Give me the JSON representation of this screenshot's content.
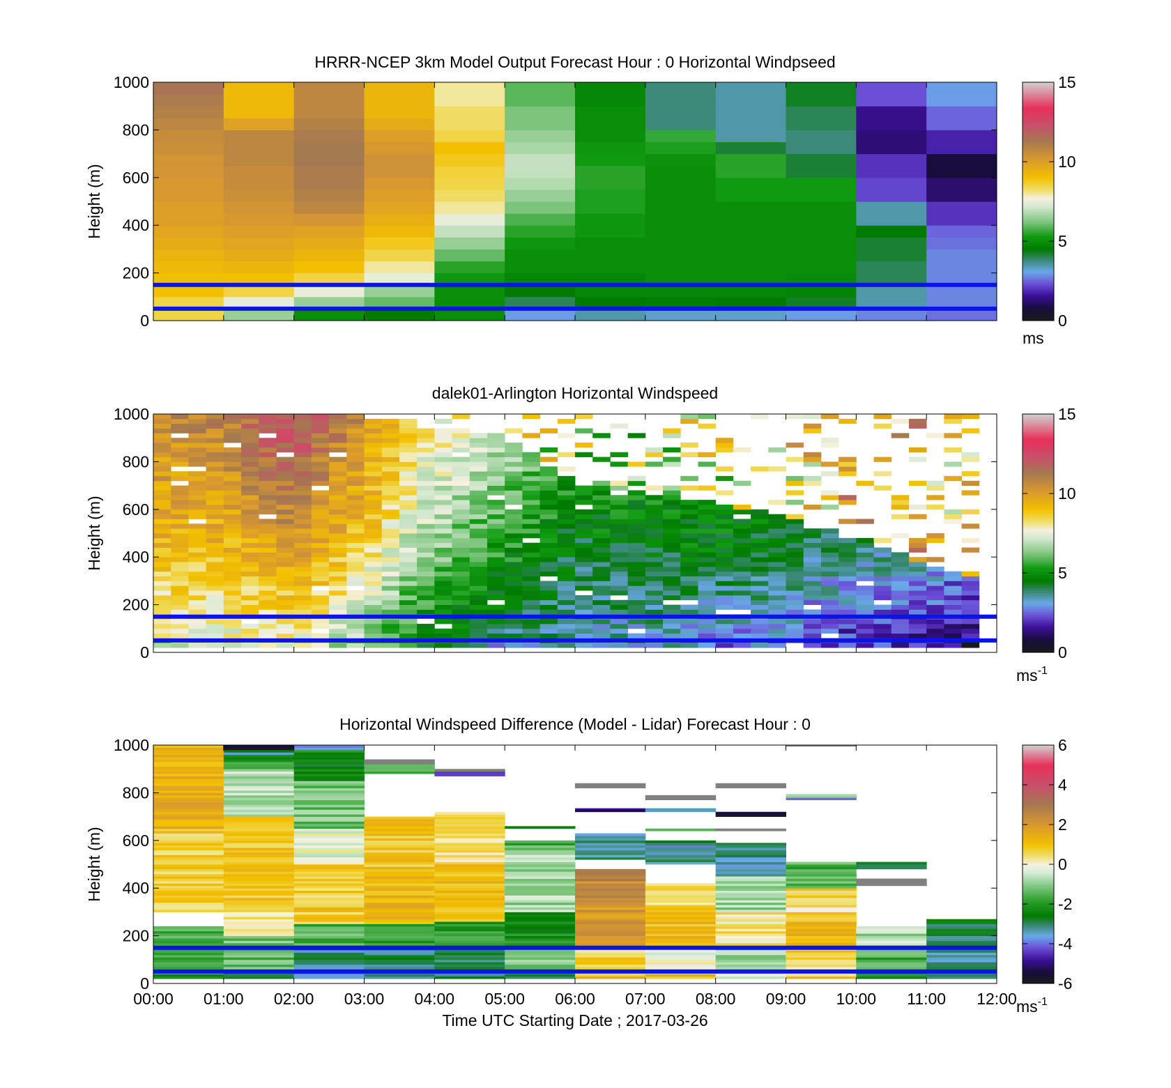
{
  "figure": {
    "xlabel": "Time UTC  Starting Date ; 2017-03-26",
    "x_tick_labels": [
      "00:00",
      "01:00",
      "02:00",
      "03:00",
      "04:00",
      "05:00",
      "06:00",
      "07:00",
      "08:00",
      "09:00",
      "10:00",
      "11:00",
      "12:00"
    ],
    "x_range_hours": [
      0,
      12
    ],
    "reference_lines_m": [
      150,
      50
    ],
    "reference_line_color": "#0a14e6"
  },
  "chart_data": [
    {
      "type": "heatmap",
      "title": "HRRR-NCEP 3km Model Output   Forecast Hour : 0 Horizontal Windpseed",
      "ylabel": "Height (m)",
      "ylim": [
        0,
        1000
      ],
      "y_tick_labels": [
        "0",
        "200",
        "400",
        "600",
        "800",
        "1000"
      ],
      "colorbar": {
        "range": [
          0,
          15
        ],
        "tick_labels": [
          "0",
          "5",
          "10",
          "15"
        ],
        "unit": "ms",
        "colormap": "windspeed"
      },
      "grid": "hourly",
      "heights_m": [
        25,
        75,
        125,
        175,
        225,
        275,
        325,
        375,
        425,
        475,
        525,
        575,
        625,
        675,
        725,
        775,
        825,
        875,
        925,
        975
      ],
      "values_by_hour": [
        [
          8.5,
          8.5,
          9,
          9,
          9.2,
          9.4,
          9.6,
          9.8,
          10,
          10,
          10.2,
          10.2,
          10.3,
          10.3,
          10.5,
          10.6,
          10.8,
          11,
          11.2,
          11.4
        ],
        [
          6.5,
          7.5,
          8.5,
          9,
          9.3,
          9.6,
          9.8,
          10,
          10.2,
          10.3,
          10.5,
          10.6,
          10.6,
          10.8,
          10.8,
          10.8,
          9.9,
          9.2,
          9.2,
          9.2
        ],
        [
          5,
          6.5,
          7.5,
          8.5,
          9,
          9.3,
          9.6,
          9.9,
          10.3,
          10.8,
          11,
          11.2,
          11.2,
          11.3,
          11.3,
          11.2,
          11,
          10.8,
          10.8,
          10.8
        ],
        [
          4.5,
          6,
          6.5,
          7.5,
          8,
          8.5,
          8.8,
          9.2,
          9.5,
          9.8,
          10,
          10.2,
          10.4,
          10.4,
          10.2,
          10,
          9.6,
          9.3,
          9.3,
          9.3
        ],
        [
          5,
          5,
          5,
          5.2,
          5.5,
          6,
          6.5,
          7,
          7.5,
          8,
          8.3,
          8.5,
          8.6,
          8.8,
          9,
          8.5,
          8.3,
          8.3,
          8,
          8
        ],
        [
          3,
          4,
          4.5,
          4.8,
          5,
          5,
          5.2,
          5.5,
          5.8,
          6.2,
          6.5,
          6.8,
          7,
          7,
          6.7,
          6.5,
          6.2,
          6.2,
          5.9,
          5.9
        ],
        [
          3.5,
          4.5,
          4.8,
          4.8,
          5,
          5,
          5,
          5.2,
          5.2,
          5.4,
          5.4,
          5.5,
          5.5,
          5.3,
          5.2,
          5,
          5,
          5,
          4.8,
          4.8
        ],
        [
          3.3,
          4.6,
          4.8,
          5,
          5,
          5,
          5,
          5,
          5,
          5,
          5,
          5,
          5,
          5.1,
          5.4,
          5.6,
          3.8,
          3.8,
          3.8,
          3.8
        ],
        [
          3.3,
          4.5,
          4.8,
          5,
          5,
          5,
          5,
          5,
          5,
          5,
          5.3,
          5.3,
          5.5,
          5.5,
          4.2,
          3.5,
          3.5,
          3.5,
          3.5,
          3.5
        ],
        [
          3,
          4.3,
          4.7,
          4.9,
          5,
          5,
          5,
          5,
          5,
          5,
          5.3,
          5.3,
          4.2,
          4.2,
          3.8,
          3.8,
          4,
          4,
          4.3,
          4.3
        ],
        [
          2.8,
          3.5,
          3.5,
          4,
          4,
          4.2,
          4.2,
          4.5,
          3.5,
          3.5,
          2.2,
          2.2,
          2,
          2,
          1.3,
          1.3,
          1.5,
          1.5,
          2.3,
          2.3
        ],
        [
          2.6,
          2.8,
          2.8,
          2.8,
          2.8,
          2.8,
          2.6,
          2.5,
          2,
          2,
          1.2,
          1.2,
          0.8,
          0.8,
          1.8,
          1.8,
          2.5,
          2.5,
          3,
          3
        ]
      ]
    },
    {
      "type": "heatmap",
      "title": "dalek01-Arlington  Horizontal Windspeed",
      "ylabel": "Height (m)",
      "ylim": [
        0,
        1000
      ],
      "y_tick_labels": [
        "0",
        "200",
        "400",
        "600",
        "800",
        "1000"
      ],
      "colorbar": {
        "range": [
          0,
          15
        ],
        "tick_labels": [
          "0",
          "5",
          "10",
          "15"
        ],
        "unit": "ms",
        "unit_exponent": "-1",
        "colormap": "windspeed"
      },
      "grid": "~15 min x 20 m",
      "profile_keyframes": [
        {
          "hour": 0,
          "low": 7.5,
          "mid": 9.5,
          "top": 10.5,
          "valid_up_to_m": 1000
        },
        {
          "hour": 1,
          "low": 7.5,
          "mid": 9.5,
          "top": 11,
          "valid_up_to_m": 1000
        },
        {
          "hour": 2,
          "low": 8,
          "mid": 10.5,
          "top": 12.5,
          "valid_up_to_m": 1000
        },
        {
          "hour": 3,
          "low": 6.5,
          "mid": 9,
          "top": 10.5,
          "valid_up_to_m": 980
        },
        {
          "hour": 3.75,
          "low": 5,
          "mid": 7,
          "top": 8.5,
          "valid_up_to_m": 940
        },
        {
          "hour": 5,
          "low": 4,
          "mid": 5.5,
          "top": 7.5,
          "valid_up_to_m": 900
        },
        {
          "hour": 6,
          "low": 3.5,
          "mid": 4.5,
          "top": 6,
          "valid_up_to_m": 700
        },
        {
          "hour": 7,
          "low": 3.3,
          "mid": 4.8,
          "top": 6,
          "valid_up_to_m": 660
        },
        {
          "hour": 8,
          "low": 3,
          "mid": 4.8,
          "top": 6.5,
          "valid_up_to_m": 620
        },
        {
          "hour": 9,
          "low": 2.8,
          "mid": 4.5,
          "top": 7,
          "valid_up_to_m": 560
        },
        {
          "hour": 10,
          "low": 2,
          "mid": 4,
          "top": 8.5,
          "valid_up_to_m": 480
        },
        {
          "hour": 11,
          "low": 1.8,
          "mid": 4,
          "top": 8.5,
          "valid_up_to_m": 360
        },
        {
          "hour": 11.7,
          "low": 1.5,
          "mid": 3.2,
          "top": 8,
          "valid_up_to_m": 300
        }
      ],
      "data_end_hour": 11.75
    },
    {
      "type": "heatmap",
      "title": "Horizontal Windspeed Difference (Model - Lidar) Forecast Hour : 0",
      "ylabel": "Height (m)",
      "ylim": [
        0,
        1000
      ],
      "y_tick_labels": [
        "0",
        "200",
        "400",
        "600",
        "800",
        "1000"
      ],
      "x_tick_labels_shown": true,
      "colorbar": {
        "range": [
          -6,
          6
        ],
        "tick_labels": [
          "-6",
          "-4",
          "-2",
          "0",
          "2",
          "4",
          "6"
        ],
        "unit": "ms",
        "unit_exponent": "-1",
        "colormap": "difference"
      },
      "grid": "hourly x 10 m",
      "segments_by_hour": [
        [
          [
            20,
            40,
            -2.5
          ],
          [
            40,
            240,
            -1.5
          ],
          [
            240,
            300,
            null
          ],
          [
            300,
            650,
            0.7
          ],
          [
            650,
            1000,
            1.4
          ]
        ],
        [
          [
            20,
            60,
            -2.5
          ],
          [
            60,
            150,
            -1.4
          ],
          [
            150,
            200,
            -1.2
          ],
          [
            200,
            320,
            0.3
          ],
          [
            320,
            700,
            0.9
          ],
          [
            700,
            900,
            -0.6
          ],
          [
            900,
            960,
            -2
          ],
          [
            960,
            980,
            -3
          ],
          [
            980,
            1000,
            -5.8
          ]
        ],
        [
          [
            20,
            60,
            -3.6
          ],
          [
            60,
            150,
            -3.2
          ],
          [
            150,
            250,
            -1.5
          ],
          [
            250,
            500,
            0.8
          ],
          [
            500,
            650,
            -0.2
          ],
          [
            650,
            850,
            -1.2
          ],
          [
            850,
            980,
            -2.4
          ],
          [
            980,
            1000,
            -3.4
          ]
        ],
        [
          [
            20,
            60,
            -2.8
          ],
          [
            60,
            150,
            -3
          ],
          [
            150,
            250,
            -1.8
          ],
          [
            250,
            450,
            1.2
          ],
          [
            450,
            700,
            0.9
          ],
          [
            700,
            880,
            null
          ],
          [
            880,
            920,
            -1.5
          ],
          [
            920,
            940,
            -9
          ]
        ],
        [
          [
            20,
            60,
            -2.8
          ],
          [
            60,
            150,
            -2.8
          ],
          [
            150,
            260,
            -1.8
          ],
          [
            260,
            500,
            1.1
          ],
          [
            500,
            720,
            0.5
          ],
          [
            720,
            870,
            null
          ],
          [
            870,
            890,
            -4.6
          ],
          [
            890,
            900,
            -9
          ]
        ],
        [
          [
            20,
            60,
            -2.6
          ],
          [
            60,
            150,
            -1.2
          ],
          [
            150,
            300,
            -2.2
          ],
          [
            300,
            560,
            -0.8
          ],
          [
            560,
            600,
            -1.6
          ],
          [
            600,
            650,
            null
          ],
          [
            650,
            660,
            -2
          ]
        ],
        [
          [
            20,
            40,
            1.1
          ],
          [
            40,
            150,
            0.6
          ],
          [
            150,
            320,
            1.9
          ],
          [
            320,
            480,
            2.5
          ],
          [
            480,
            520,
            null
          ],
          [
            520,
            630,
            -3.2
          ],
          [
            720,
            735,
            -5
          ],
          [
            820,
            840,
            -9
          ]
        ],
        [
          [
            20,
            40,
            1.1
          ],
          [
            40,
            150,
            -0.2
          ],
          [
            150,
            300,
            1.1
          ],
          [
            300,
            420,
            0.6
          ],
          [
            500,
            580,
            -3.4
          ],
          [
            580,
            600,
            -2.6
          ],
          [
            640,
            650,
            -2
          ],
          [
            720,
            735,
            -3.8
          ],
          [
            770,
            790,
            -9
          ]
        ],
        [
          [
            20,
            60,
            -0.5
          ],
          [
            60,
            150,
            -1
          ],
          [
            150,
            300,
            0.3
          ],
          [
            300,
            450,
            -0.8
          ],
          [
            450,
            590,
            -3.2
          ],
          [
            640,
            650,
            -9
          ],
          [
            700,
            720,
            -5.8
          ],
          [
            820,
            840,
            -9
          ]
        ],
        [
          [
            20,
            40,
            0.8
          ],
          [
            40,
            150,
            0.6
          ],
          [
            150,
            300,
            1.1
          ],
          [
            300,
            400,
            0.5
          ],
          [
            400,
            510,
            -1.6
          ],
          [
            770,
            790,
            -3.8
          ],
          [
            780,
            795,
            -0.5
          ],
          [
            995,
            1000,
            -9
          ]
        ],
        [
          [
            20,
            60,
            -2.4
          ],
          [
            60,
            150,
            -1.6
          ],
          [
            150,
            240,
            -0.7
          ],
          [
            410,
            440,
            -9
          ],
          [
            480,
            500,
            -3.2
          ],
          [
            500,
            510,
            -2.6
          ]
        ],
        [
          [
            20,
            60,
            -3
          ],
          [
            60,
            150,
            -3.2
          ],
          [
            150,
            270,
            -2.8
          ]
        ]
      ]
    }
  ]
}
